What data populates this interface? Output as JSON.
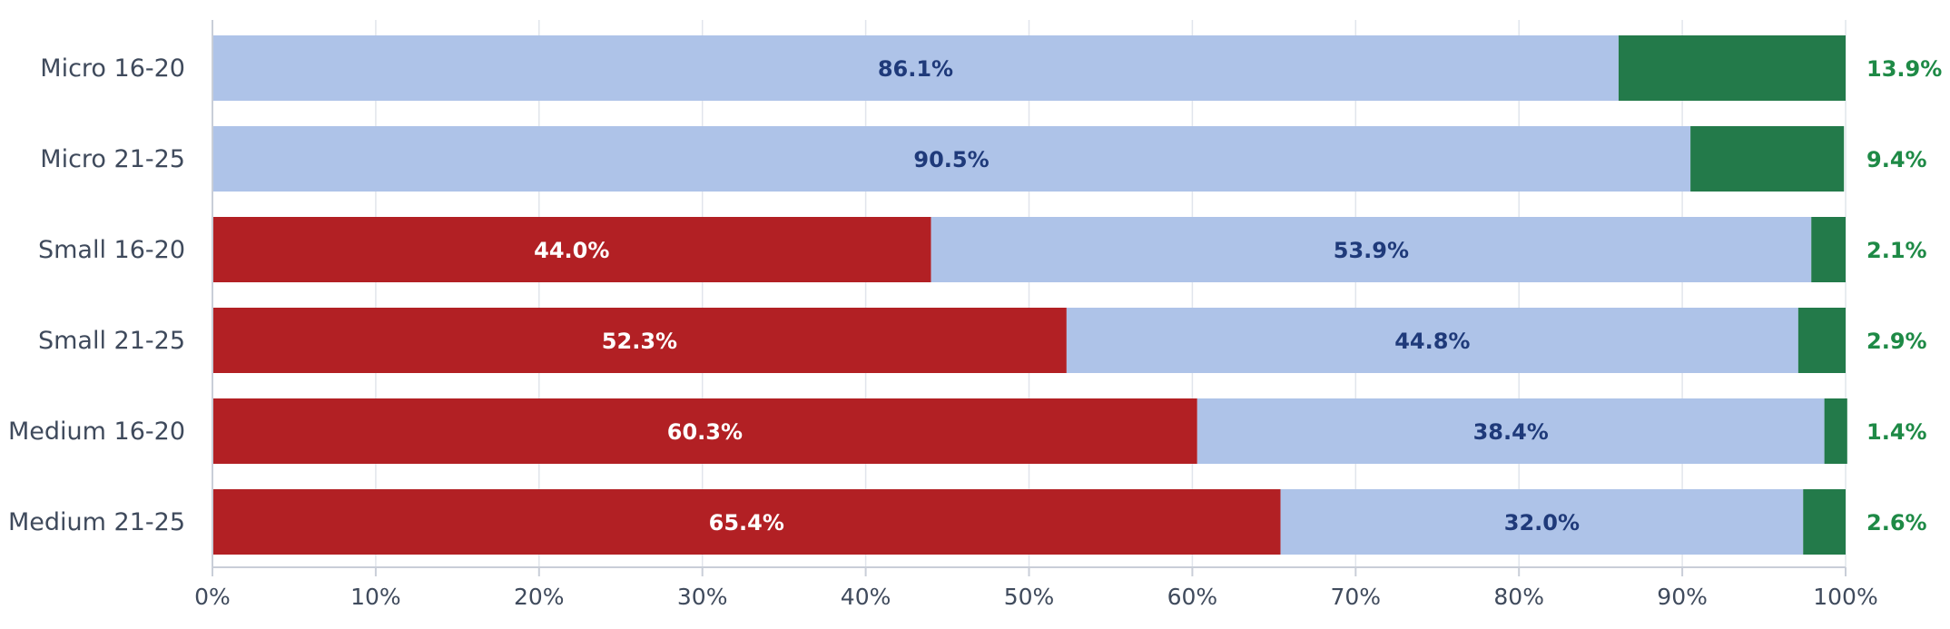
{
  "chart_data": {
    "type": "bar",
    "orientation": "horizontal",
    "stacked": true,
    "categories": [
      "Micro 16-20",
      "Micro 21-25",
      "Small 16-20",
      "Small 21-25",
      "Medium 16-20",
      "Medium 21-25"
    ],
    "series": [
      {
        "color": "#b22024",
        "label_color": "#ffffff",
        "values": [
          0,
          0,
          44.0,
          52.3,
          60.3,
          65.4
        ],
        "labels": [
          "",
          "",
          "44.0%",
          "52.3%",
          "60.3%",
          "65.4%"
        ]
      },
      {
        "color": "#aec3e8",
        "label_color": "#1f3a7a",
        "values": [
          86.1,
          90.5,
          53.9,
          44.8,
          38.4,
          32.0
        ],
        "labels": [
          "86.1%",
          "90.5%",
          "53.9%",
          "44.8%",
          "38.4%",
          "32.0%"
        ]
      },
      {
        "color": "#237a4a",
        "label_color": "#1e8a46",
        "values": [
          13.9,
          9.4,
          2.1,
          2.9,
          1.4,
          2.6
        ],
        "labels": [
          "13.9%",
          "9.4%",
          "2.1%",
          "2.9%",
          "1.4%",
          "2.6%"
        ],
        "label_position": "outside-right"
      }
    ],
    "xlim": [
      0,
      100
    ],
    "xticks": [
      0,
      10,
      20,
      30,
      40,
      50,
      60,
      70,
      80,
      90,
      100
    ],
    "xtick_labels": [
      "0%",
      "10%",
      "20%",
      "30%",
      "40%",
      "50%",
      "60%",
      "70%",
      "80%",
      "90%",
      "100%"
    ],
    "grid": true,
    "title": "",
    "xlabel": "",
    "ylabel": ""
  }
}
